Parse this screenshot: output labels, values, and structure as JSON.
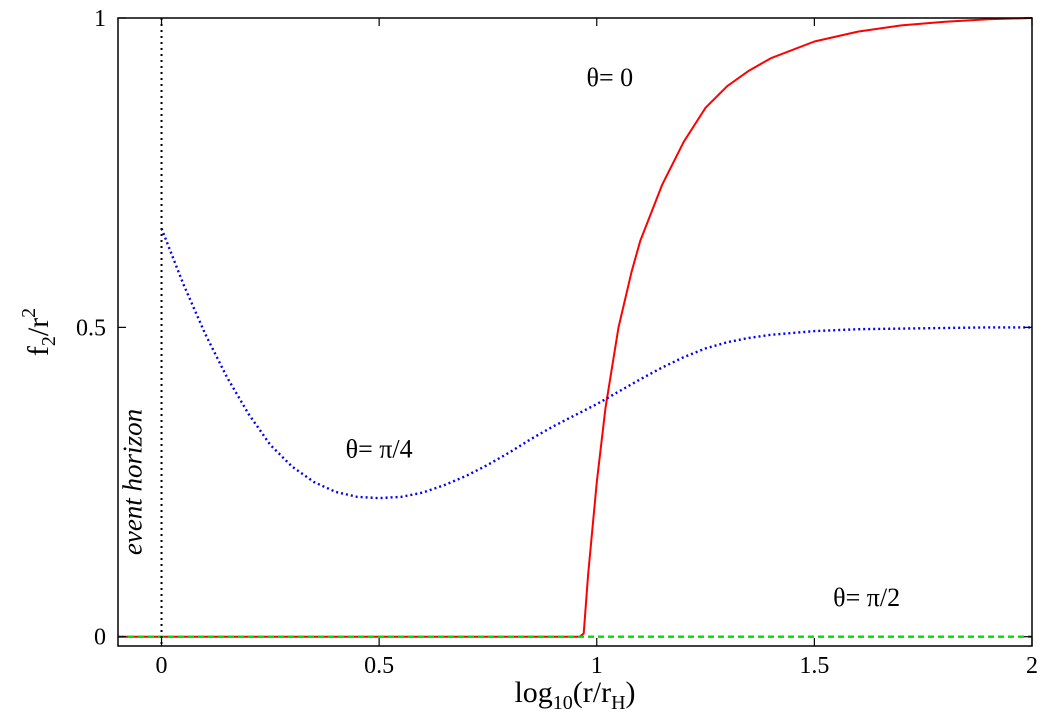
{
  "chart_data": {
    "type": "line",
    "xlabel": "log10(r/rH)",
    "ylabel": "f2/r2",
    "xlim": [
      -0.1,
      2.0
    ],
    "ylim": [
      -0.015,
      1.0
    ],
    "grid": false,
    "x_ticks": [
      {
        "value": 0,
        "label": "0"
      },
      {
        "value": 0.5,
        "label": "0.5"
      },
      {
        "value": 1,
        "label": "1"
      },
      {
        "value": 1.5,
        "label": "1.5"
      },
      {
        "value": 2,
        "label": "2"
      }
    ],
    "y_ticks": [
      {
        "value": 0,
        "label": "0"
      },
      {
        "value": 0.5,
        "label": "0.5"
      },
      {
        "value": 1,
        "label": "1"
      }
    ],
    "series": [
      {
        "label": "θ= 0",
        "color": "#ff0000",
        "dash": "solid",
        "x": [
          -0.1,
          0.96,
          0.97,
          0.98,
          1.0,
          1.02,
          1.05,
          1.08,
          1.1,
          1.15,
          1.2,
          1.25,
          1.3,
          1.35,
          1.4,
          1.5,
          1.6,
          1.7,
          1.8,
          1.9,
          2.0
        ],
        "y": [
          0.0,
          0.0,
          0.005,
          0.1,
          0.25,
          0.37,
          0.5,
          0.59,
          0.64,
          0.73,
          0.8,
          0.855,
          0.89,
          0.915,
          0.935,
          0.962,
          0.978,
          0.988,
          0.994,
          0.998,
          1.0
        ]
      },
      {
        "label": "θ= π/4",
        "color": "#0000ff",
        "dash": "dotted",
        "x": [
          0.0,
          0.05,
          0.1,
          0.15,
          0.2,
          0.25,
          0.3,
          0.35,
          0.4,
          0.45,
          0.5,
          0.55,
          0.6,
          0.65,
          0.7,
          0.75,
          0.8,
          0.85,
          0.9,
          0.95,
          1.0,
          1.05,
          1.1,
          1.15,
          1.2,
          1.25,
          1.3,
          1.35,
          1.4,
          1.5,
          1.6,
          1.7,
          1.8,
          1.9,
          2.0
        ],
        "y": [
          0.66,
          0.57,
          0.49,
          0.42,
          0.36,
          0.31,
          0.275,
          0.25,
          0.234,
          0.226,
          0.224,
          0.226,
          0.233,
          0.245,
          0.26,
          0.278,
          0.298,
          0.32,
          0.34,
          0.358,
          0.376,
          0.396,
          0.416,
          0.435,
          0.452,
          0.466,
          0.476,
          0.483,
          0.488,
          0.494,
          0.497,
          0.498,
          0.499,
          0.5,
          0.5
        ]
      },
      {
        "label": "θ= π/2",
        "color": "#00dd00",
        "dash": "dashed",
        "x": [
          -0.1,
          2.0
        ],
        "y": [
          0.0,
          0.0
        ]
      }
    ],
    "annotations": [
      {
        "text": "θ= 0",
        "x": 1.03,
        "y": 0.89,
        "series": 0
      },
      {
        "text": "θ= π/4",
        "x": 0.5,
        "y": 0.29,
        "series": 1
      },
      {
        "text": "θ= π/2",
        "x": 1.62,
        "y": 0.05,
        "series": 2
      },
      {
        "text": "event horizon",
        "x": 0.0,
        "y": 0.25,
        "rotated": true
      }
    ],
    "reference_lines": [
      {
        "orientation": "vertical",
        "x": 0,
        "color": "#000000",
        "dash": "dotted",
        "label": "event horizon"
      }
    ]
  }
}
